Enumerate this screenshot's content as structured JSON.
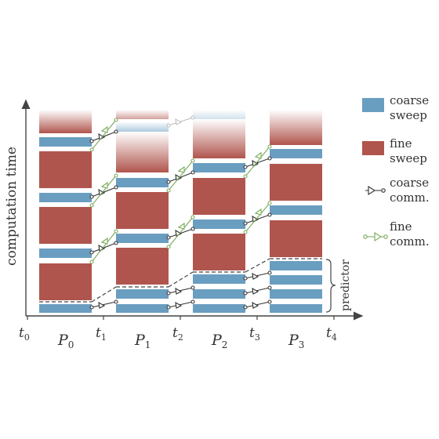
{
  "axes": {
    "y_label": "computation time",
    "time_labels": [
      {
        "name": "t",
        "sub": "0"
      },
      {
        "name": "t",
        "sub": "1"
      },
      {
        "name": "t",
        "sub": "2"
      },
      {
        "name": "t",
        "sub": "3"
      },
      {
        "name": "t",
        "sub": "4"
      }
    ],
    "processor_labels": [
      {
        "name": "P",
        "sub": "0"
      },
      {
        "name": "P",
        "sub": "1"
      },
      {
        "name": "P",
        "sub": "2"
      },
      {
        "name": "P",
        "sub": "3"
      }
    ]
  },
  "predictor_label": "predictor",
  "legend": {
    "coarse_sweep": [
      "coarse",
      "sweep"
    ],
    "fine_sweep": [
      "fine",
      "sweep"
    ],
    "coarse_comm": [
      "coarse",
      "comm."
    ],
    "fine_comm": [
      "fine",
      "comm."
    ]
  },
  "colors": {
    "coarse": "#6a9ec0",
    "fine": "#b0554d",
    "coarse_comm": "#333333",
    "fine_comm": "#7aaa5a",
    "axis": "#444444"
  }
}
